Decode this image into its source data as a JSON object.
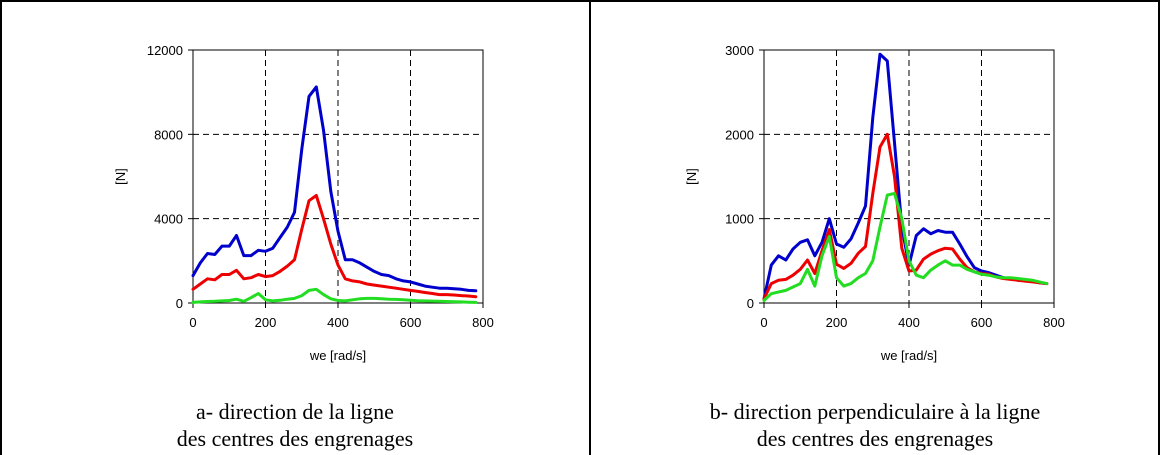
{
  "chart_data": [
    {
      "type": "line",
      "caption_line1": "a- direction de la ligne",
      "caption_line2": "des centres des engrenages",
      "xlabel": "we [rad/s]",
      "ylabel": "[N]",
      "xlim": [
        0,
        800
      ],
      "ylim": [
        0,
        12000
      ],
      "xticks": [
        0,
        200,
        400,
        600,
        800
      ],
      "yticks": [
        0,
        4000,
        8000,
        12000
      ],
      "xtick_labels": [
        "0",
        "200",
        "400",
        "600",
        "800"
      ],
      "ytick_labels": [
        "0",
        "4000",
        "8000",
        "12000"
      ],
      "grid": true,
      "grid_style": "dashed",
      "legend": "none",
      "series": [
        {
          "color": "#0000cc",
          "x": [
            0,
            20,
            40,
            60,
            80,
            100,
            120,
            140,
            160,
            180,
            200,
            220,
            240,
            260,
            280,
            300,
            320,
            340,
            360,
            380,
            400,
            420,
            440,
            460,
            480,
            500,
            520,
            540,
            560,
            580,
            600,
            620,
            640,
            660,
            680,
            700,
            720,
            740,
            760,
            780
          ],
          "y": [
            1300,
            1900,
            2350,
            2300,
            2700,
            2700,
            3200,
            2250,
            2250,
            2500,
            2450,
            2600,
            3100,
            3600,
            4300,
            7300,
            9800,
            10250,
            8200,
            5300,
            3400,
            2050,
            2050,
            1900,
            1700,
            1500,
            1350,
            1300,
            1150,
            1050,
            1000,
            900,
            800,
            750,
            700,
            700,
            680,
            650,
            600,
            580
          ]
        },
        {
          "color": "#ee0000",
          "x": [
            0,
            20,
            40,
            60,
            80,
            100,
            120,
            140,
            160,
            180,
            200,
            220,
            240,
            260,
            280,
            300,
            320,
            340,
            360,
            380,
            400,
            420,
            440,
            460,
            480,
            500,
            520,
            540,
            560,
            580,
            600,
            620,
            640,
            660,
            680,
            700,
            720,
            740,
            760,
            780
          ],
          "y": [
            650,
            900,
            1150,
            1100,
            1350,
            1350,
            1550,
            1150,
            1200,
            1350,
            1250,
            1300,
            1500,
            1750,
            2050,
            3500,
            4850,
            5100,
            4000,
            2800,
            1800,
            1150,
            1050,
            1000,
            900,
            850,
            800,
            750,
            700,
            650,
            600,
            550,
            500,
            450,
            400,
            400,
            380,
            350,
            330,
            300
          ]
        },
        {
          "color": "#22dd22",
          "x": [
            0,
            20,
            40,
            60,
            80,
            100,
            120,
            140,
            160,
            180,
            200,
            220,
            240,
            260,
            280,
            300,
            320,
            340,
            360,
            380,
            400,
            420,
            440,
            460,
            480,
            500,
            520,
            540,
            560,
            580,
            600,
            620,
            640,
            660,
            680,
            700,
            720,
            740,
            760,
            780
          ],
          "y": [
            30,
            50,
            70,
            80,
            100,
            120,
            180,
            80,
            250,
            450,
            150,
            100,
            130,
            180,
            220,
            350,
            600,
            650,
            400,
            200,
            120,
            100,
            150,
            200,
            220,
            220,
            200,
            180,
            170,
            150,
            130,
            110,
            100,
            90,
            80,
            70,
            60,
            50,
            40,
            30
          ]
        }
      ]
    },
    {
      "type": "line",
      "caption_line1": "b- direction perpendiculaire à la ligne",
      "caption_line2": "des centres des engrenages",
      "xlabel": "we [rad/s]",
      "ylabel": "[N]",
      "xlim": [
        0,
        800
      ],
      "ylim": [
        0,
        3000
      ],
      "xticks": [
        0,
        200,
        400,
        600,
        800
      ],
      "yticks": [
        0,
        1000,
        2000,
        3000
      ],
      "xtick_labels": [
        "0",
        "200",
        "400",
        "600",
        "800"
      ],
      "ytick_labels": [
        "0",
        "1000",
        "2000",
        "3000"
      ],
      "grid": true,
      "grid_style": "dashed",
      "legend": "none",
      "series": [
        {
          "color": "#0000cc",
          "x": [
            0,
            20,
            40,
            60,
            80,
            100,
            120,
            140,
            160,
            180,
            200,
            220,
            240,
            260,
            280,
            300,
            320,
            340,
            360,
            380,
            400,
            420,
            440,
            460,
            480,
            500,
            520,
            540,
            560,
            580,
            600,
            620,
            640,
            660,
            680,
            700,
            720,
            740,
            760,
            780
          ],
          "y": [
            50,
            450,
            560,
            510,
            640,
            720,
            750,
            560,
            720,
            1000,
            700,
            660,
            760,
            950,
            1150,
            2200,
            2950,
            2870,
            1900,
            900,
            450,
            800,
            880,
            820,
            860,
            840,
            840,
            700,
            550,
            420,
            380,
            360,
            330,
            300,
            290,
            270,
            270,
            260,
            240,
            230
          ]
        },
        {
          "color": "#ee0000",
          "x": [
            0,
            20,
            40,
            60,
            80,
            100,
            120,
            140,
            160,
            180,
            200,
            220,
            240,
            260,
            280,
            300,
            320,
            340,
            360,
            380,
            400,
            420,
            440,
            460,
            480,
            500,
            520,
            540,
            560,
            580,
            600,
            620,
            640,
            660,
            680,
            700,
            720,
            740,
            760,
            780
          ],
          "y": [
            50,
            230,
            270,
            280,
            330,
            400,
            510,
            350,
            620,
            870,
            460,
            410,
            470,
            590,
            670,
            1300,
            1850,
            2000,
            1500,
            650,
            380,
            390,
            520,
            580,
            620,
            650,
            640,
            520,
            420,
            370,
            350,
            340,
            310,
            290,
            280,
            270,
            260,
            250,
            240,
            230
          ]
        },
        {
          "color": "#22dd22",
          "x": [
            0,
            20,
            40,
            60,
            80,
            100,
            120,
            140,
            160,
            180,
            200,
            220,
            240,
            260,
            280,
            300,
            320,
            340,
            360,
            380,
            400,
            420,
            440,
            460,
            480,
            500,
            520,
            540,
            560,
            580,
            600,
            620,
            640,
            660,
            680,
            700,
            720,
            740,
            760,
            780
          ],
          "y": [
            30,
            110,
            130,
            150,
            190,
            230,
            400,
            200,
            560,
            790,
            300,
            200,
            230,
            300,
            350,
            500,
            900,
            1280,
            1300,
            1000,
            500,
            330,
            300,
            390,
            450,
            500,
            450,
            450,
            400,
            370,
            340,
            330,
            310,
            300,
            300,
            290,
            280,
            270,
            250,
            230
          ]
        }
      ]
    }
  ]
}
